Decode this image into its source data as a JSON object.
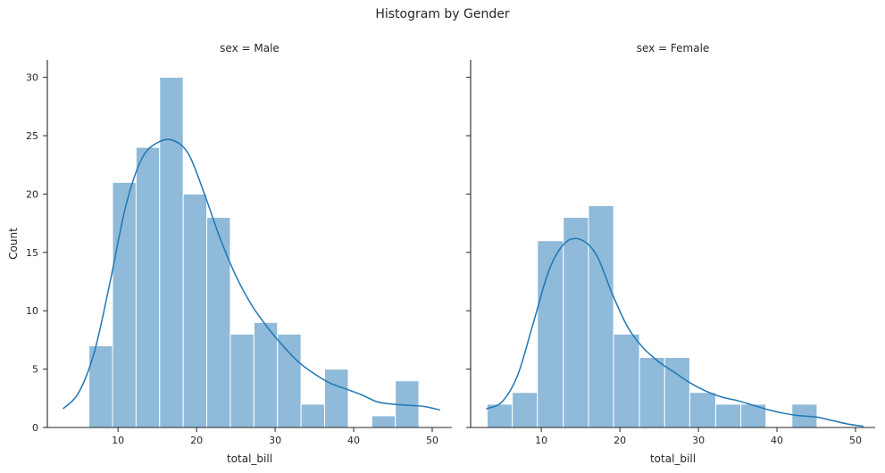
{
  "figure": {
    "title": "Histogram by Gender"
  },
  "chart_data": [
    {
      "type": "bar",
      "subtype": "histogram-with-kde",
      "title": "sex = Male",
      "xlabel": "total_bill",
      "ylabel": "Count",
      "xlim": [
        1.0,
        52.5
      ],
      "ylim": [
        0,
        31.5
      ],
      "xticks": [
        10,
        20,
        30,
        40,
        50
      ],
      "yticks": [
        0,
        5,
        10,
        15,
        20,
        25,
        30
      ],
      "bar_color": "#8fbad9",
      "line_color": "#1f77b4",
      "bins": [
        {
          "x0": 6.3,
          "x1": 9.3,
          "count": 7
        },
        {
          "x0": 9.3,
          "x1": 12.3,
          "count": 21
        },
        {
          "x0": 12.3,
          "x1": 15.3,
          "count": 24
        },
        {
          "x0": 15.3,
          "x1": 18.3,
          "count": 30
        },
        {
          "x0": 18.3,
          "x1": 21.3,
          "count": 20
        },
        {
          "x0": 21.3,
          "x1": 24.3,
          "count": 18
        },
        {
          "x0": 24.3,
          "x1": 27.3,
          "count": 8
        },
        {
          "x0": 27.3,
          "x1": 30.3,
          "count": 9
        },
        {
          "x0": 30.3,
          "x1": 33.3,
          "count": 8
        },
        {
          "x0": 33.3,
          "x1": 36.3,
          "count": 2
        },
        {
          "x0": 36.3,
          "x1": 39.3,
          "count": 5
        },
        {
          "x0": 39.3,
          "x1": 42.3,
          "count": 0
        },
        {
          "x0": 42.3,
          "x1": 45.3,
          "count": 1
        },
        {
          "x0": 45.3,
          "x1": 48.3,
          "count": 4
        }
      ],
      "kde": {
        "x": [
          3,
          5,
          7,
          9,
          11,
          13,
          15,
          17,
          19,
          21,
          23,
          25,
          27,
          29,
          31,
          33,
          35,
          37,
          39,
          41,
          43,
          45,
          47,
          49,
          51
        ],
        "y": [
          1.6,
          3.0,
          6.5,
          12.5,
          19.0,
          23.0,
          24.4,
          24.6,
          23.4,
          20.0,
          16.2,
          13.0,
          10.5,
          8.6,
          7.0,
          5.6,
          4.6,
          3.8,
          3.3,
          2.8,
          2.2,
          2.0,
          1.9,
          1.8,
          1.5
        ]
      }
    },
    {
      "type": "bar",
      "subtype": "histogram-with-kde",
      "title": "sex = Female",
      "xlabel": "total_bill",
      "ylabel": "",
      "xlim": [
        1.0,
        52.5
      ],
      "ylim": [
        0,
        31.5
      ],
      "xticks": [
        10,
        20,
        30,
        40,
        50
      ],
      "yticks": [
        0,
        5,
        10,
        15,
        20,
        25,
        30
      ],
      "bar_color": "#8fbad9",
      "line_color": "#1f77b4",
      "bins": [
        {
          "x0": 3.1,
          "x1": 6.3,
          "count": 2
        },
        {
          "x0": 6.3,
          "x1": 9.5,
          "count": 3
        },
        {
          "x0": 9.5,
          "x1": 12.8,
          "count": 16
        },
        {
          "x0": 12.8,
          "x1": 16.0,
          "count": 18
        },
        {
          "x0": 16.0,
          "x1": 19.2,
          "count": 19
        },
        {
          "x0": 19.2,
          "x1": 22.5,
          "count": 8
        },
        {
          "x0": 22.5,
          "x1": 25.7,
          "count": 6
        },
        {
          "x0": 25.7,
          "x1": 28.9,
          "count": 6
        },
        {
          "x0": 28.9,
          "x1": 32.2,
          "count": 3
        },
        {
          "x0": 32.2,
          "x1": 35.4,
          "count": 2
        },
        {
          "x0": 35.4,
          "x1": 38.6,
          "count": 2
        },
        {
          "x0": 38.6,
          "x1": 41.9,
          "count": 0
        },
        {
          "x0": 41.9,
          "x1": 45.1,
          "count": 2
        }
      ],
      "kde": {
        "x": [
          3,
          5,
          7,
          9,
          11,
          13,
          15,
          17,
          19,
          21,
          23,
          25,
          27,
          29,
          31,
          33,
          35,
          37,
          39,
          41,
          43,
          45,
          47,
          49,
          51
        ],
        "y": [
          1.6,
          2.2,
          4.5,
          9.0,
          13.5,
          15.8,
          16.1,
          14.8,
          11.5,
          8.6,
          6.8,
          5.6,
          4.7,
          3.8,
          3.1,
          2.6,
          2.3,
          1.9,
          1.5,
          1.2,
          1.0,
          0.9,
          0.6,
          0.3,
          0.1
        ]
      }
    }
  ]
}
